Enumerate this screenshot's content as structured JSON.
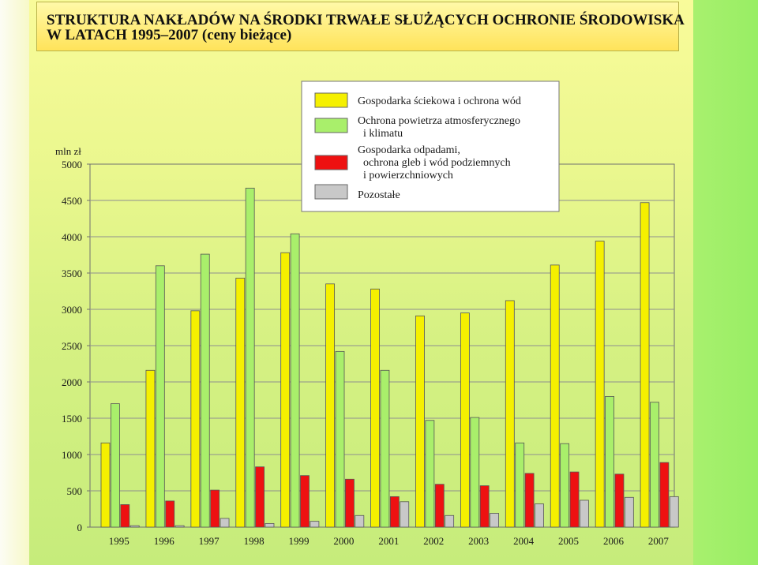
{
  "title": {
    "line1": "STRUKTURA NAKŁADÓW NA ŚRODKI TRWAŁE SŁUŻĄCYCH OCHRONIE ŚRODOWISKA",
    "line2": "W LATACH 1995–2007 (ceny bieżące)"
  },
  "colors": {
    "yellow": "#f5f000",
    "green": "#a9ef6b",
    "red": "#ee1111",
    "gray": "#c8c8c8"
  },
  "chart_data": {
    "type": "bar",
    "ylabel": "mln zł",
    "ylim": [
      0,
      5000
    ],
    "yticks": [
      0,
      500,
      1000,
      1500,
      2000,
      2500,
      3000,
      3500,
      4000,
      4500,
      5000
    ],
    "grid": true,
    "legend_placement": "top-right",
    "categories": [
      "1995",
      "1996",
      "1997",
      "1998",
      "1999",
      "2000",
      "2001",
      "2002",
      "2003",
      "2004",
      "2005",
      "2006",
      "2007"
    ],
    "series": [
      {
        "name": "Gospodarka ściekowa i ochrona wód",
        "color": "yellow",
        "values": [
          1160,
          2160,
          2980,
          3430,
          3780,
          3350,
          3280,
          2910,
          2950,
          3120,
          3610,
          3940,
          4470
        ]
      },
      {
        "name": "Ochrona powietrza atmosferycznego i klimatu",
        "color": "green",
        "values": [
          1700,
          3600,
          3760,
          4670,
          4040,
          2420,
          2160,
          1470,
          1510,
          1160,
          1150,
          1800,
          1720
        ]
      },
      {
        "name": "Gospodarka odpadami, ochrona gleb i wód podziemnych i powierzchniowych",
        "color": "red",
        "values": [
          310,
          360,
          510,
          830,
          710,
          660,
          420,
          590,
          570,
          740,
          760,
          730,
          890
        ]
      },
      {
        "name": "Pozostałe",
        "color": "gray",
        "values": [
          20,
          20,
          120,
          50,
          80,
          160,
          350,
          160,
          190,
          320,
          370,
          410,
          420
        ]
      }
    ],
    "legend_lines": [
      [
        "Gospodarka ściekowa i ochrona wód"
      ],
      [
        "Ochrona powietrza atmosferycznego",
        "  i klimatu"
      ],
      [
        "Gospodarka odpadami,",
        "  ochrona gleb i wód podziemnych",
        "  i powierzchniowych"
      ],
      [
        "Pozostałe"
      ]
    ]
  }
}
